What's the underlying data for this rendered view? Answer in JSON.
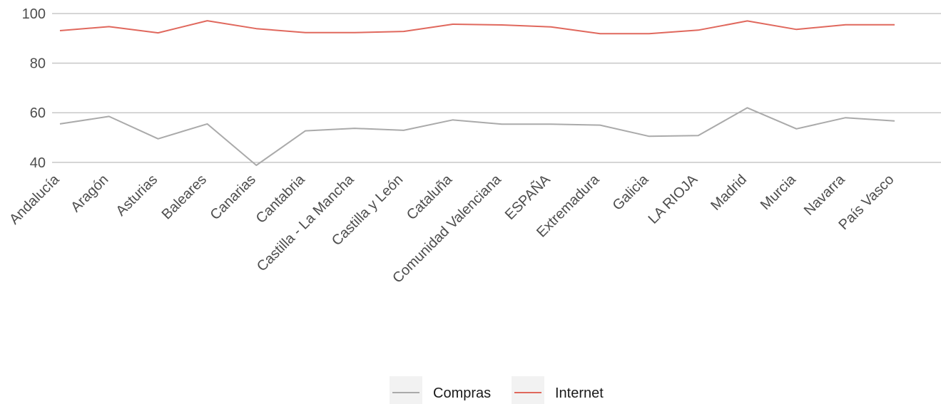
{
  "chart_data": {
    "type": "line",
    "categories": [
      "Andalucía",
      "Aragón",
      "Asturias",
      "Baleares",
      "Canarias",
      "Cantabria",
      "Castilla - La Mancha",
      "Castilla y León",
      "Cataluña",
      "Comunidad Valenciana",
      "ESPAÑA",
      "Extremadura",
      "Galicia",
      "LA RIOJA",
      "Madrid",
      "Murcia",
      "Navarra",
      "País Vasco"
    ],
    "series": [
      {
        "name": "Compras",
        "color": "#aaaaaa",
        "values": [
          55.5,
          58.5,
          49.5,
          55.5,
          38.8,
          52.7,
          53.7,
          52.9,
          57.1,
          55.4,
          55.4,
          55.0,
          50.5,
          50.8,
          62.0,
          53.5,
          58.0,
          56.7
        ]
      },
      {
        "name": "Internet",
        "color": "#e0685d",
        "values": [
          93.1,
          94.7,
          92.2,
          97.1,
          93.9,
          92.3,
          92.3,
          92.8,
          95.7,
          95.4,
          94.6,
          91.9,
          91.9,
          93.3,
          97.0,
          93.6,
          95.5,
          95.5
        ]
      }
    ],
    "yticks": [
      40,
      60,
      80,
      100
    ],
    "ylim": [
      38.8,
      100
    ],
    "grid": true,
    "legend": "bottom"
  }
}
